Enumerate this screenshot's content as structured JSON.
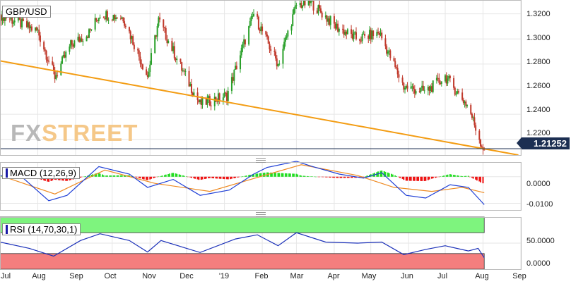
{
  "panels": {
    "main_label": "GBP/USD",
    "macd_label": "MACD (12,26,9)",
    "rsi_label": "RSI (14,70,30,1)"
  },
  "logo": {
    "part1": "FX",
    "part2": "STREET"
  },
  "price_badge": "1.21252",
  "price_axis": [
    "1.3200",
    "1.3000",
    "1.2800",
    "1.2600",
    "1.2400",
    "1.2200"
  ],
  "macd_axis": [
    "0.0000",
    "-0.0100"
  ],
  "rsi_axis": [
    "50.0000",
    "0.0000"
  ],
  "x_axis": [
    "Jul",
    "Aug",
    "Sep",
    "Oct",
    "Nov",
    "Dec",
    "'19",
    "Feb",
    "Mar",
    "Apr",
    "May",
    "Jun",
    "Jul",
    "Aug",
    "Sep"
  ],
  "colors": {
    "up_candle": "#2aa02a",
    "down_candle": "#c0392b",
    "trendline": "#f39c12",
    "macd_line": "#1f3fd6",
    "signal_line": "#ee8a22",
    "hist_pos": "#22dd22",
    "hist_neg": "#ee1111",
    "rsi_line": "#1a2fb8",
    "overbought_zone": "#7ef47e",
    "oversold_zone": "#f47e7e"
  },
  "chart_data": [
    {
      "type": "candlestick",
      "title": "GBP/USD",
      "x_range": [
        "2018-07",
        "2019-09"
      ],
      "ylim": [
        1.2075,
        1.331
      ],
      "close_path": [
        [
          "2018-07-02",
          1.319
        ],
        [
          "2018-07-16",
          1.313
        ],
        [
          "2018-08-01",
          1.306
        ],
        [
          "2018-08-15",
          1.27
        ],
        [
          "2018-08-28",
          1.295
        ],
        [
          "2018-09-12",
          1.305
        ],
        [
          "2018-09-21",
          1.32
        ],
        [
          "2018-10-10",
          1.317
        ],
        [
          "2018-10-30",
          1.27
        ],
        [
          "2018-11-08",
          1.315
        ],
        [
          "2018-11-27",
          1.276
        ],
        [
          "2018-12-12",
          1.248
        ],
        [
          "2019-01-03",
          1.255
        ],
        [
          "2019-01-25",
          1.32
        ],
        [
          "2019-02-14",
          1.28
        ],
        [
          "2019-03-01",
          1.327
        ],
        [
          "2019-03-13",
          1.329
        ],
        [
          "2019-04-02",
          1.31
        ],
        [
          "2019-04-20",
          1.3
        ],
        [
          "2019-05-08",
          1.305
        ],
        [
          "2019-05-28",
          1.262
        ],
        [
          "2019-06-15",
          1.258
        ],
        [
          "2019-07-01",
          1.27
        ],
        [
          "2019-07-20",
          1.246
        ],
        [
          "2019-07-31",
          1.215
        ],
        [
          "2019-08-02",
          1.2125
        ]
      ],
      "last_price": 1.21252,
      "trendline": [
        [
          "2018-07-01",
          1.2825
        ],
        [
          "2019-08-30",
          1.2075
        ]
      ]
    },
    {
      "type": "line",
      "title": "MACD (12,26,9)",
      "ylim": [
        -0.0125,
        0.0055
      ],
      "series": [
        {
          "name": "MACD",
          "x": [
            "2018-07-01",
            "2018-07-20",
            "2018-08-10",
            "2018-08-25",
            "2018-09-20",
            "2018-10-15",
            "2018-10-30",
            "2018-11-20",
            "2018-12-12",
            "2019-01-05",
            "2019-01-25",
            "2019-02-05",
            "2019-03-01",
            "2019-03-13",
            "2019-04-05",
            "2019-04-25",
            "2019-05-10",
            "2019-05-30",
            "2019-06-15",
            "2019-07-05",
            "2019-07-20",
            "2019-08-02"
          ],
          "y": [
            0.0004,
            -0.0005,
            -0.009,
            -0.007,
            0.0038,
            0.001,
            -0.004,
            -0.001,
            -0.007,
            -0.005,
            0.001,
            0.0035,
            0.0058,
            0.004,
            0.001,
            -0.0005,
            0.0015,
            -0.007,
            -0.008,
            -0.003,
            -0.004,
            -0.0105
          ]
        },
        {
          "name": "Signal",
          "x": [
            "2018-07-01",
            "2018-08-15",
            "2018-09-25",
            "2018-11-05",
            "2018-12-20",
            "2019-01-30",
            "2019-03-05",
            "2019-04-20",
            "2019-05-20",
            "2019-06-20",
            "2019-07-15",
            "2019-08-02"
          ],
          "y": [
            0.0005,
            -0.0065,
            0.0025,
            -0.0025,
            -0.0055,
            0.0,
            0.0045,
            0.0005,
            -0.004,
            -0.0055,
            -0.004,
            -0.006
          ]
        }
      ]
    },
    {
      "type": "line",
      "title": "RSI (14,70,30,1)",
      "ylim": [
        0,
        100
      ],
      "levels": [
        70,
        30
      ],
      "series": [
        {
          "name": "RSI",
          "x": [
            "2018-07-01",
            "2018-07-25",
            "2018-08-14",
            "2018-09-05",
            "2018-09-21",
            "2018-10-15",
            "2018-10-30",
            "2018-11-10",
            "2018-12-12",
            "2019-01-10",
            "2019-01-28",
            "2019-02-14",
            "2019-03-01",
            "2019-03-25",
            "2019-04-20",
            "2019-05-10",
            "2019-05-28",
            "2019-06-15",
            "2019-07-01",
            "2019-07-20",
            "2019-07-28",
            "2019-08-02"
          ],
          "y": [
            52,
            40,
            25,
            55,
            68,
            55,
            33,
            55,
            32,
            58,
            66,
            45,
            70,
            52,
            50,
            52,
            28,
            38,
            45,
            35,
            40,
            22
          ]
        }
      ]
    }
  ]
}
